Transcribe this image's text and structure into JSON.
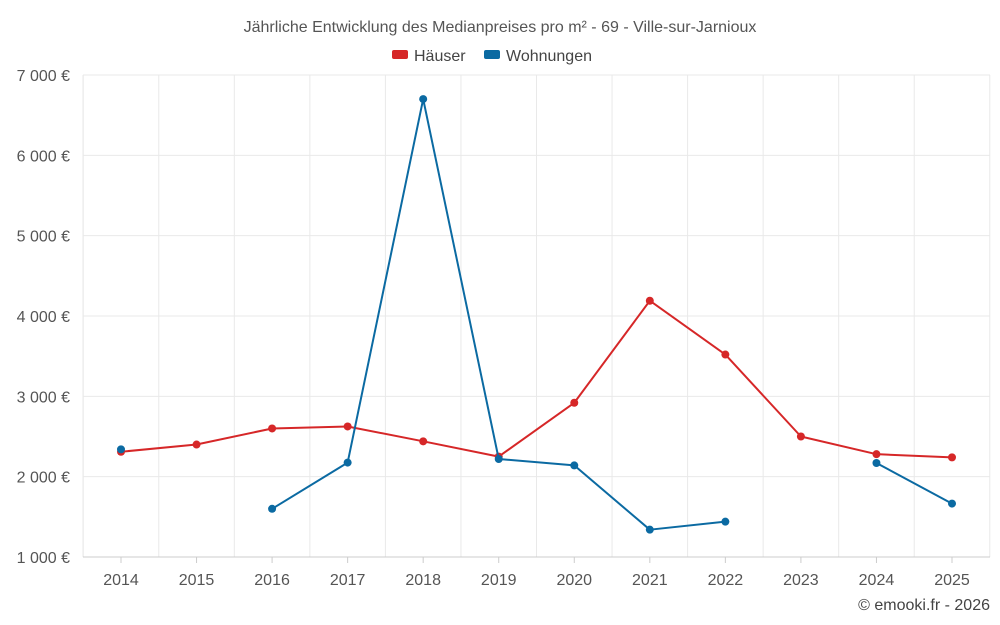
{
  "chart_data": {
    "type": "line",
    "title": "Jährliche Entwicklung des Medianpreises pro m² - 69 - Ville-sur-Jarnioux",
    "categories": [
      "2014",
      "2015",
      "2016",
      "2017",
      "2018",
      "2019",
      "2020",
      "2021",
      "2022",
      "2023",
      "2024",
      "2025"
    ],
    "y_tick_labels": [
      "1 000 €",
      "2 000 €",
      "3 000 €",
      "4 000 €",
      "5 000 €",
      "6 000 €",
      "7 000 €"
    ],
    "y_ticks": [
      1000,
      2000,
      3000,
      4000,
      5000,
      6000,
      7000
    ],
    "ylim": [
      1000,
      7000
    ],
    "grid": true,
    "legend_position": "top-center",
    "series": [
      {
        "name": "Häuser",
        "color": "#d62728",
        "values": [
          2310,
          2400,
          2600,
          2625,
          2440,
          2250,
          2920,
          4190,
          3520,
          2500,
          2280,
          2240
        ]
      },
      {
        "name": "Wohnungen",
        "color": "#0b6aa2",
        "values": [
          2340,
          null,
          1600,
          2175,
          6700,
          2220,
          2140,
          1340,
          1440,
          null,
          2170,
          1665
        ]
      }
    ]
  },
  "credit": "© emooki.fr - 2026"
}
